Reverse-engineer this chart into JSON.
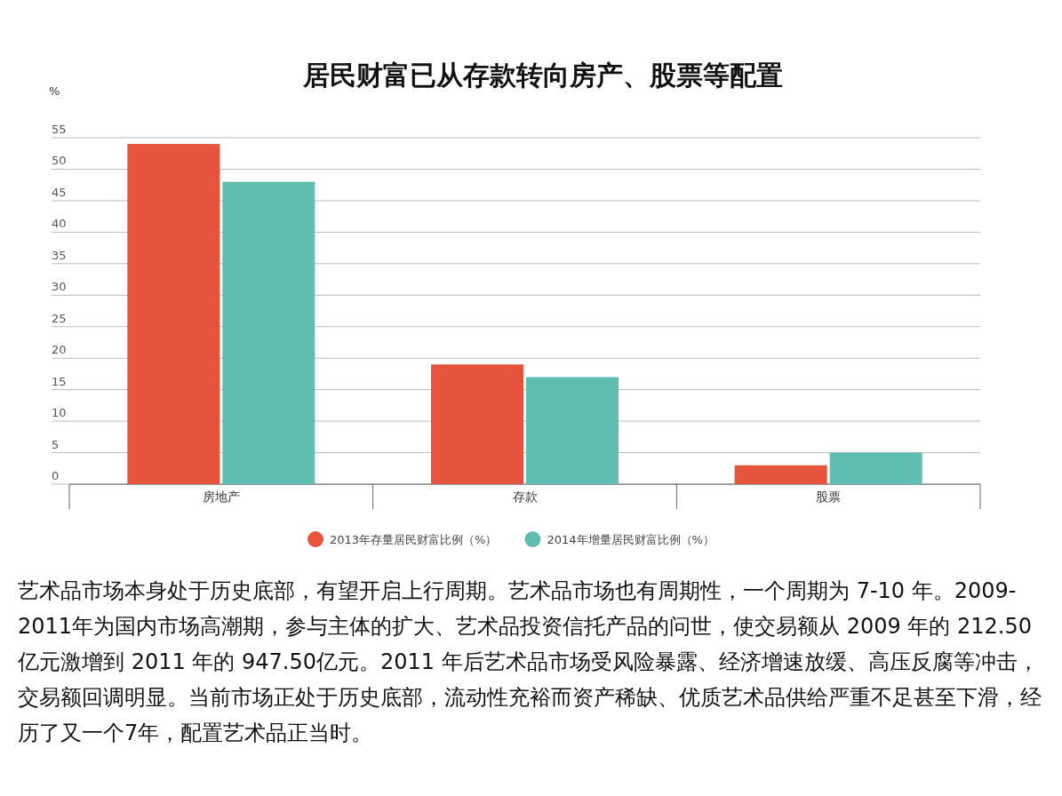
{
  "chart_data": {
    "type": "bar",
    "title": "居民财富已从存款转向房产、股票等配置",
    "ylabel": "%",
    "categories": [
      "房地产",
      "存款",
      "股票"
    ],
    "series": [
      {
        "name": "2013年存量居民财富比例（%）",
        "color": "#e4533a",
        "values": [
          54,
          19,
          3
        ]
      },
      {
        "name": "2014年增量居民财富比例（%）",
        "color": "#5fbcb0",
        "values": [
          48,
          17,
          5
        ]
      }
    ],
    "ylim": [
      0,
      55
    ],
    "yticks": [
      0,
      5,
      10,
      15,
      20,
      25,
      30,
      35,
      40,
      45,
      50,
      55
    ],
    "grid": "y",
    "legend": "bottom",
    "annotations": [
      "艺术品市场本身处于历史底部，有望开启上行周期。艺术品市场也有周期性，一个周期为 7-10 年。2009-2011年为国内市场高潮期，参与主体的扩大、艺术品投资信托产品的问世，使交易额从 2009 年的 212.50 亿元激增到 2011 年的 947.50亿元。2011 年后艺术品市场受风险暴露、经济增速放缓、高压反腐等冲击，交易额回调明显。当前市场正处于历史底部，流动性充裕而资产稀缺、优质艺术品供给严重不足甚至下滑，经历了又一个7年，配置艺术品正当时。"
    ]
  }
}
